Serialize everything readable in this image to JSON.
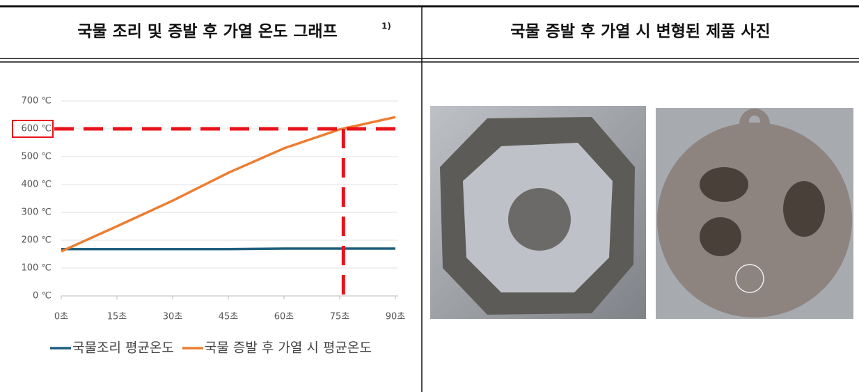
{
  "table": {
    "headers": [
      "국물 조리 및 증발 후 가열 온도 그래프",
      "국물 증발 후 가열 시 변형된 제품 사진"
    ],
    "footnote_mark": "1)"
  },
  "chart_data": {
    "type": "line",
    "x": [
      0,
      15,
      30,
      45,
      60,
      75,
      90
    ],
    "xlim": [
      0,
      90
    ],
    "xticks": [
      {
        "value": 0,
        "label": "0초"
      },
      {
        "value": 15,
        "label": "15초"
      },
      {
        "value": 30,
        "label": "30초"
      },
      {
        "value": 45,
        "label": "45초"
      },
      {
        "value": 60,
        "label": "60초"
      },
      {
        "value": 75,
        "label": "75초"
      },
      {
        "value": 90,
        "label": "90초"
      }
    ],
    "ylim": [
      0,
      700
    ],
    "yticks": [
      {
        "value": 0,
        "label": "0 ℃"
      },
      {
        "value": 100,
        "label": "100 ℃"
      },
      {
        "value": 200,
        "label": "200 ℃"
      },
      {
        "value": 300,
        "label": "300 ℃"
      },
      {
        "value": 400,
        "label": "400 ℃"
      },
      {
        "value": 500,
        "label": "500 ℃"
      },
      {
        "value": 600,
        "label": "600 ℃"
      },
      {
        "value": 700,
        "label": "700 ℃"
      }
    ],
    "grid": true,
    "series": [
      {
        "name": "국물조리 평균온도",
        "color": "#1f5f7f",
        "values": [
          168,
          168,
          168,
          168,
          170,
          170,
          170
        ]
      },
      {
        "name": "국물 증발 후 가열 시 평균온도",
        "color": "#ed7d31",
        "values": [
          160,
          250,
          342,
          442,
          530,
          598,
          642
        ]
      }
    ],
    "reference_lines": {
      "y": 600,
      "x": 76,
      "color": "#e8121a"
    }
  }
}
